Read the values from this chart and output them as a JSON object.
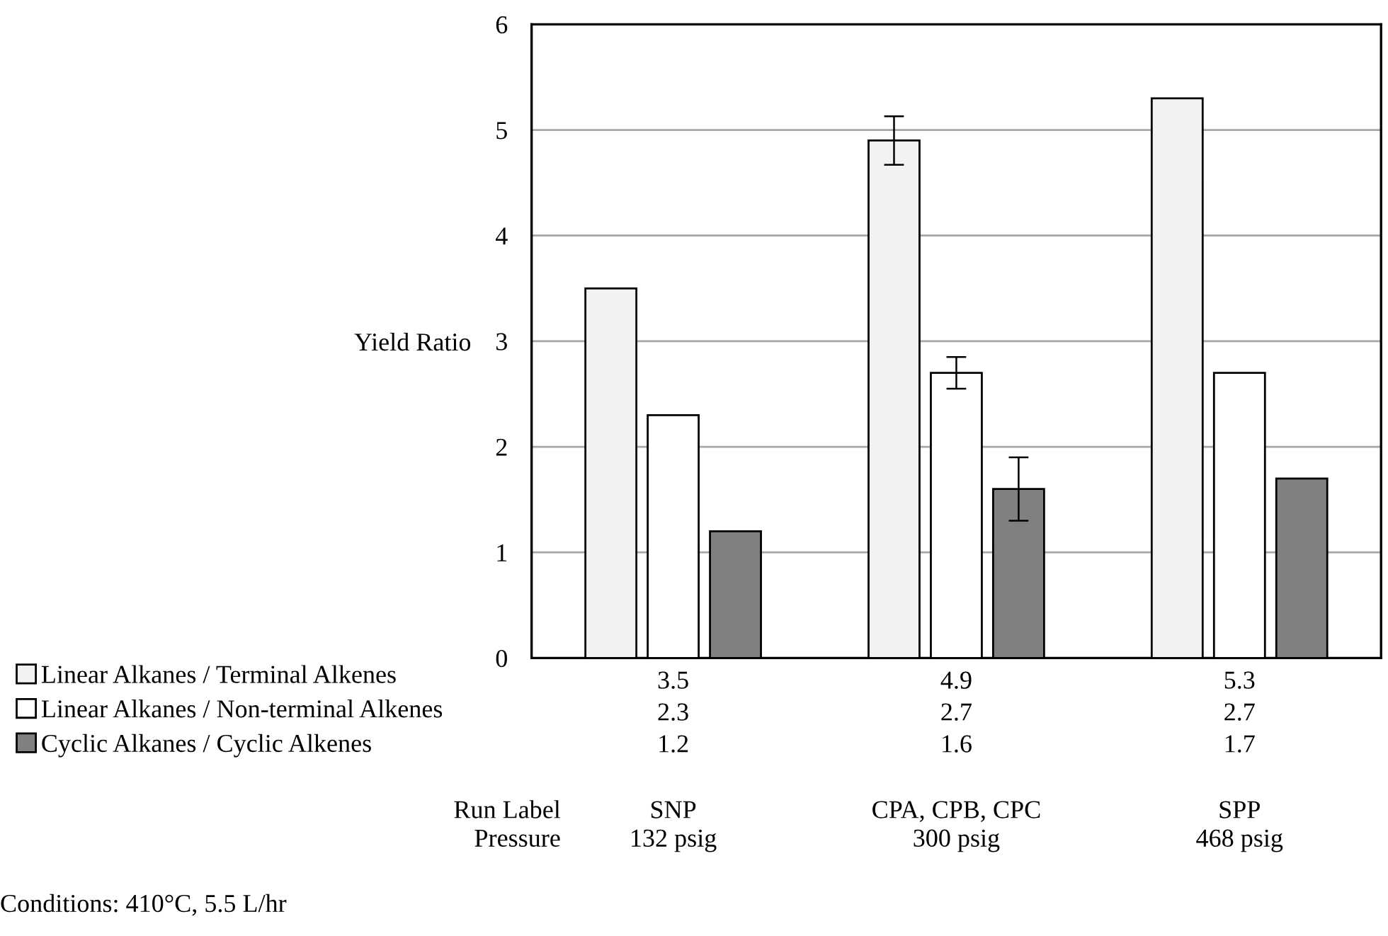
{
  "chart_data": {
    "type": "bar",
    "ylabel": "Yield Ratio",
    "xlabel": "Run Label\nPressure",
    "categories": [
      "SNP\n132 psig",
      "CPA, CPB, CPC\n300 psig",
      "SPP\n468 psig"
    ],
    "series": [
      {
        "name": "Linear Alkanes / Terminal Alkenes",
        "color": "#f2f2f2",
        "values": [
          3.5,
          4.9,
          5.3
        ],
        "errors": [
          null,
          0.23,
          null
        ]
      },
      {
        "name": "Linear Alkanes / Non-terminal Alkenes",
        "color": "#ffffff",
        "values": [
          2.3,
          2.7,
          2.7
        ],
        "errors": [
          null,
          0.15,
          null
        ]
      },
      {
        "name": "Cyclic Alkanes / Cyclic Alkenes",
        "color": "#808080",
        "values": [
          1.2,
          1.6,
          1.7
        ],
        "errors": [
          null,
          0.3,
          null
        ]
      }
    ],
    "ylim": [
      0,
      6
    ],
    "yticks": [
      0,
      1,
      2,
      3,
      4,
      5,
      6
    ],
    "grid": "y",
    "legend": "bottom left",
    "data_labels": true,
    "annotations": [
      "Conditions: 410°C, 5.5 L/hr"
    ]
  }
}
